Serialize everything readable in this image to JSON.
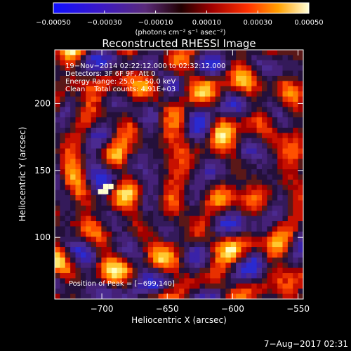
{
  "chart_data": {
    "type": "heatmap",
    "title": "Reconstructed RHESSI Image",
    "xlabel": "Heliocentric X (arcsec)",
    "ylabel": "Heliocentric Y (arcsec)",
    "xlim": [
      -736,
      -546
    ],
    "ylim": [
      54,
      240
    ],
    "xticks": [
      -700,
      -650,
      -600,
      -550
    ],
    "xtick_labels": [
      "−700",
      "−650",
      "−600",
      "−550"
    ],
    "yticks": [
      100,
      150,
      200
    ],
    "ytick_labels": [
      "100",
      "150",
      "200"
    ],
    "colorbar": {
      "range": [
        -0.0005,
        0.0005
      ],
      "ticks": [
        -0.0005,
        -0.0003,
        -0.0001,
        0.0001,
        0.0003,
        0.0005
      ],
      "tick_labels": [
        "−0.00050",
        "−0.00030",
        "−0.00010",
        "0.00010",
        "0.00030",
        "0.00050"
      ],
      "unit_label": "(photons cm⁻² s⁻¹ asec⁻²)"
    },
    "annotations": [
      "19−Nov−2014 02:22:12.000 to 02:32:12.000",
      "Detectors: 3F 6F 9F, Att 0",
      "Energy Range: 25.0 − 50.0 keV",
      "Clean    Total counts: 4.91E+03"
    ],
    "peak_label": "Position of Peak = [−699,140]",
    "peak_position": [
      -699,
      140
    ]
  },
  "footer": {
    "timestamp": "7−Aug−2017 02:31"
  },
  "colors": {
    "background": "#000000",
    "text": "#ffffff"
  }
}
